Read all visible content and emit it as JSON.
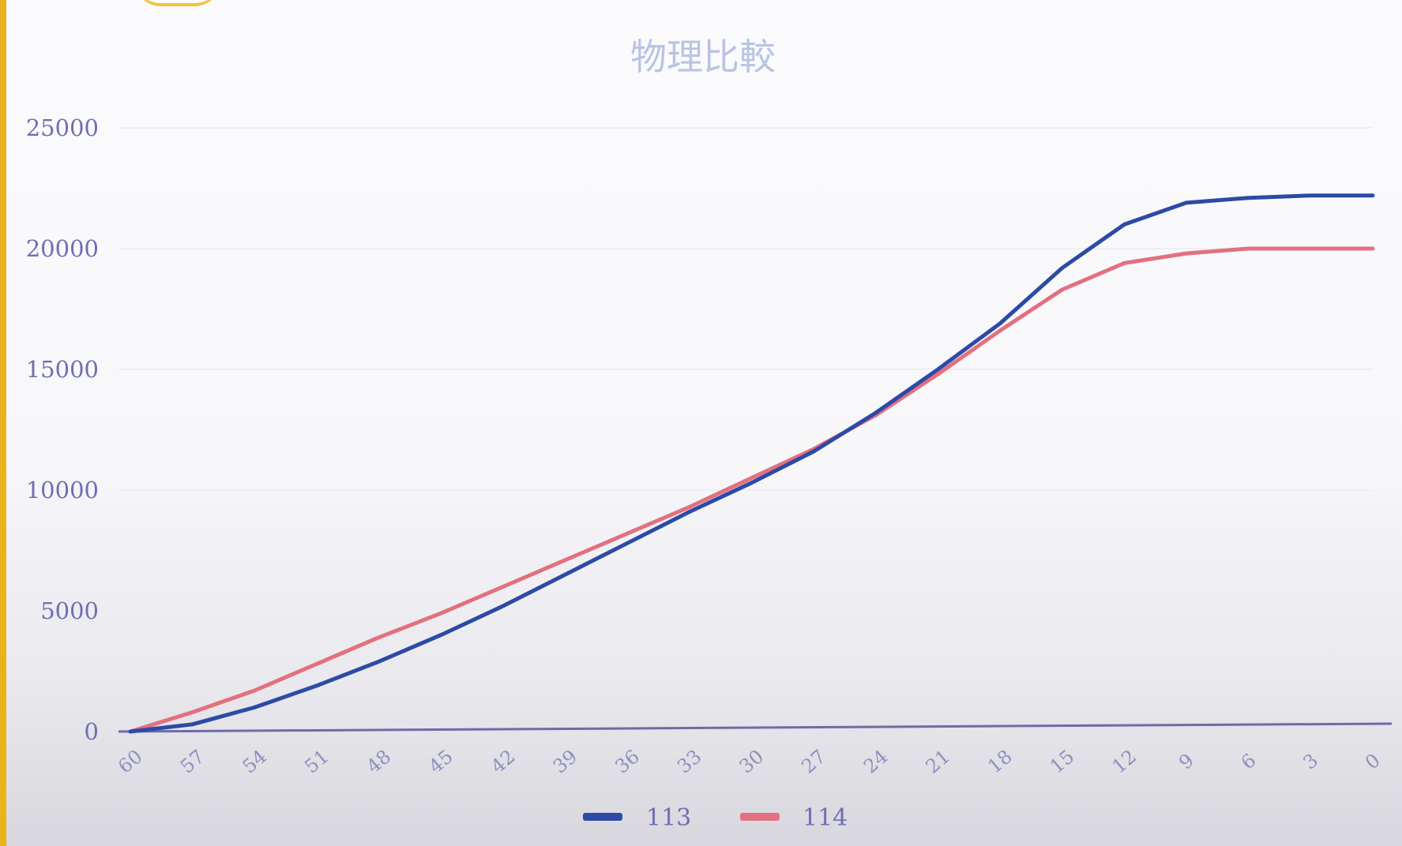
{
  "chart_data": {
    "type": "line",
    "title": "物理比較",
    "xlabel": "",
    "ylabel": "",
    "ylim": [
      0,
      25000
    ],
    "y_ticks": [
      "0",
      "5000",
      "10000",
      "15000",
      "20000",
      "25000"
    ],
    "x": [
      60,
      57,
      54,
      51,
      48,
      45,
      42,
      39,
      36,
      33,
      30,
      27,
      24,
      21,
      18,
      15,
      12,
      9,
      6,
      3,
      0
    ],
    "x_ticks": [
      "60",
      "57",
      "54",
      "51",
      "48",
      "45",
      "42",
      "39",
      "36",
      "33",
      "30",
      "27",
      "24",
      "21",
      "18",
      "15",
      "12",
      "9",
      "6",
      "3",
      "0"
    ],
    "x_reversed": true,
    "grid": true,
    "legend_position": "bottom",
    "series": [
      {
        "name": "113",
        "color": "#2c4aa6",
        "values": [
          0,
          300,
          1000,
          1900,
          2900,
          4000,
          5200,
          6500,
          7800,
          9100,
          10300,
          11600,
          13200,
          15000,
          16900,
          19200,
          21000,
          21900,
          22100,
          22200,
          22200
        ]
      },
      {
        "name": "114",
        "color": "#e3707f",
        "values": [
          0,
          800,
          1700,
          2800,
          3900,
          4900,
          6000,
          7100,
          8200,
          9300,
          10500,
          11700,
          13100,
          14800,
          16600,
          18300,
          19400,
          19800,
          20000,
          20000,
          20000
        ]
      }
    ]
  }
}
